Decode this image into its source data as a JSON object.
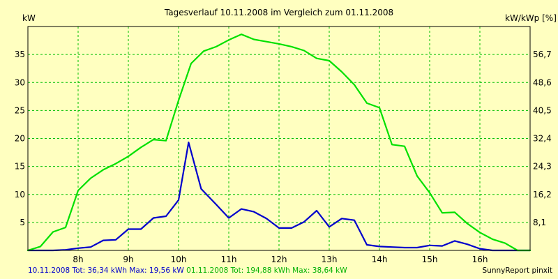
{
  "chart_data": {
    "type": "line",
    "title": "Tagesverlauf 10.11.2008 im Vergleich zum 01.11.2008",
    "ylabel": "kW",
    "ylabel_right": "kW/kWp [%]",
    "ylim": [
      0,
      40
    ],
    "xlim": [
      7.0,
      17.0
    ],
    "grid": true,
    "x_ticks": [
      {
        "x": 8,
        "label": "8h"
      },
      {
        "x": 9,
        "label": "9h"
      },
      {
        "x": 10,
        "label": "10h"
      },
      {
        "x": 11,
        "label": "11h"
      },
      {
        "x": 12,
        "label": "12h"
      },
      {
        "x": 13,
        "label": "13h"
      },
      {
        "x": 14,
        "label": "14h"
      },
      {
        "x": 15,
        "label": "15h"
      },
      {
        "x": 16,
        "label": "16h"
      }
    ],
    "y_ticks": [
      5,
      10,
      15,
      20,
      25,
      30,
      35
    ],
    "y_ticks_right": [
      "8,1",
      "16,2",
      "24,3",
      "32,4",
      "40,5",
      "48,6",
      "56,7"
    ],
    "series": [
      {
        "name": "10.11.2008",
        "color": "#0000cc",
        "points": [
          [
            7.0,
            0
          ],
          [
            7.25,
            0
          ],
          [
            7.5,
            0
          ],
          [
            7.75,
            0.1
          ],
          [
            8.0,
            0.4
          ],
          [
            8.25,
            0.6
          ],
          [
            8.5,
            1.8
          ],
          [
            8.75,
            1.9
          ],
          [
            9.0,
            3.8
          ],
          [
            9.25,
            3.8
          ],
          [
            9.5,
            5.8
          ],
          [
            9.75,
            6.1
          ],
          [
            10.0,
            9.0
          ],
          [
            10.2,
            19.3
          ],
          [
            10.45,
            11.0
          ],
          [
            10.75,
            8.2
          ],
          [
            11.0,
            5.8
          ],
          [
            11.25,
            7.4
          ],
          [
            11.5,
            6.9
          ],
          [
            11.75,
            5.7
          ],
          [
            12.0,
            4.0
          ],
          [
            12.25,
            4.0
          ],
          [
            12.5,
            5.1
          ],
          [
            12.75,
            7.1
          ],
          [
            13.0,
            4.2
          ],
          [
            13.25,
            5.7
          ],
          [
            13.5,
            5.4
          ],
          [
            13.75,
            1.0
          ],
          [
            14.0,
            0.7
          ],
          [
            14.25,
            0.6
          ],
          [
            14.5,
            0.5
          ],
          [
            14.75,
            0.5
          ],
          [
            15.0,
            0.9
          ],
          [
            15.25,
            0.8
          ],
          [
            15.5,
            1.7
          ],
          [
            15.75,
            1.1
          ],
          [
            16.0,
            0.3
          ],
          [
            16.25,
            0
          ],
          [
            16.5,
            0
          ],
          [
            16.75,
            0
          ],
          [
            17.0,
            0
          ]
        ]
      },
      {
        "name": "01.11.2008",
        "color": "#00e000",
        "points": [
          [
            7.0,
            0
          ],
          [
            7.25,
            0.7
          ],
          [
            7.5,
            3.3
          ],
          [
            7.75,
            4.1
          ],
          [
            8.0,
            10.7
          ],
          [
            8.25,
            12.9
          ],
          [
            8.5,
            14.4
          ],
          [
            8.75,
            15.5
          ],
          [
            9.0,
            16.8
          ],
          [
            9.25,
            18.4
          ],
          [
            9.5,
            19.8
          ],
          [
            9.75,
            19.6
          ],
          [
            10.0,
            26.8
          ],
          [
            10.25,
            33.4
          ],
          [
            10.5,
            35.6
          ],
          [
            10.75,
            36.4
          ],
          [
            11.0,
            37.6
          ],
          [
            11.25,
            38.6
          ],
          [
            11.5,
            37.7
          ],
          [
            11.75,
            37.3
          ],
          [
            12.0,
            36.9
          ],
          [
            12.25,
            36.4
          ],
          [
            12.5,
            35.7
          ],
          [
            12.75,
            34.3
          ],
          [
            13.0,
            33.9
          ],
          [
            13.25,
            31.9
          ],
          [
            13.5,
            29.6
          ],
          [
            13.75,
            26.3
          ],
          [
            14.0,
            25.5
          ],
          [
            14.25,
            18.9
          ],
          [
            14.5,
            18.6
          ],
          [
            14.75,
            13.3
          ],
          [
            15.0,
            10.3
          ],
          [
            15.25,
            6.7
          ],
          [
            15.5,
            6.8
          ],
          [
            15.75,
            4.8
          ],
          [
            16.0,
            3.2
          ],
          [
            16.25,
            2.0
          ],
          [
            16.5,
            1.3
          ],
          [
            16.75,
            0
          ],
          [
            17.0,
            0
          ]
        ]
      }
    ]
  },
  "footer": {
    "left_blue": "10.11.2008 Tot: 36,34 kWh Max: 19,56 kW",
    "left_green": "01.11.2008 Tot: 194,88 kWh Max: 38,64 kW",
    "credit": "SunnyReport pinxit"
  },
  "colors": {
    "background": "#ffffc0",
    "grid": "#00c000",
    "blue_text": "#0000cc",
    "green_text": "#00b000"
  }
}
